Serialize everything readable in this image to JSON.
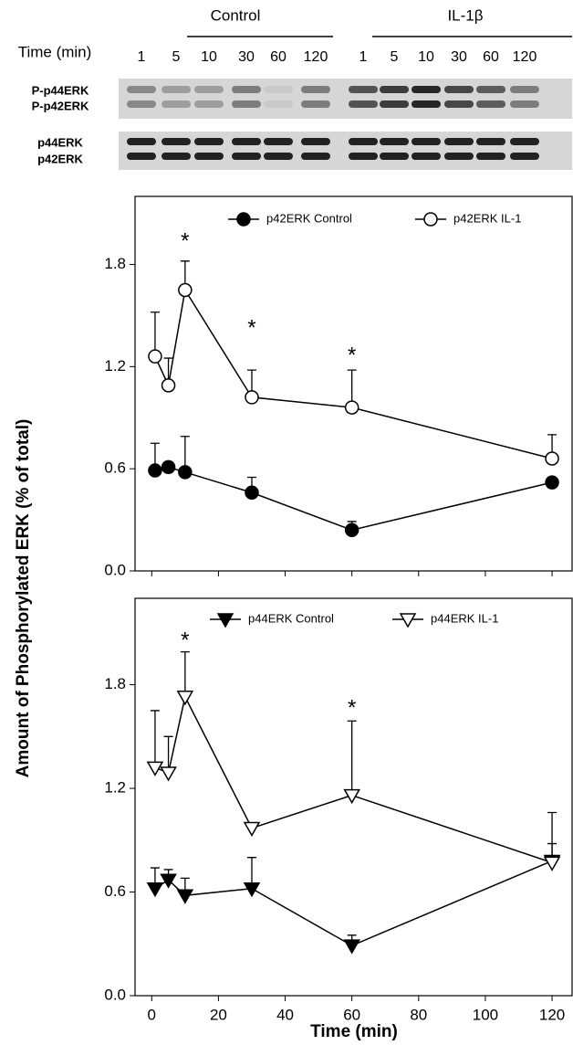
{
  "blot": {
    "groups": [
      "Control",
      "IL-1β"
    ],
    "time_label": "Time (min)",
    "control_lanes": [
      "1",
      "5",
      "10",
      "30",
      "60",
      "120"
    ],
    "il1_lanes": [
      "1",
      "5",
      "10",
      "30",
      "60",
      "120"
    ],
    "phospho_bands": [
      "P-p44ERK",
      "P-p42ERK"
    ],
    "total_bands": [
      "p44ERK",
      "p42ERK"
    ]
  },
  "figure": {
    "ylabel": "Amount of Phosphorylated ERK (% of total)",
    "xlabel": "Time (min)"
  },
  "chart_data": [
    {
      "type": "line",
      "xlim": [
        -5,
        126
      ],
      "ylim": [
        0,
        2.2
      ],
      "xticks": [
        0,
        20,
        40,
        60,
        80,
        100,
        120
      ],
      "xtick_labels": false,
      "yticks": [
        {
          "value": 0,
          "label": "0.0"
        },
        0.6,
        1.2,
        1.8
      ],
      "x": [
        1,
        5,
        10,
        30,
        60,
        120
      ],
      "series": [
        {
          "name": "p42ERK Control",
          "marker": "circle",
          "color": "#000000",
          "values": [
            0.59,
            0.61,
            0.58,
            0.46,
            0.24,
            0.52
          ],
          "errors": [
            0.16,
            0.03,
            0.21,
            0.09,
            0.05,
            0.01
          ]
        },
        {
          "name": "p42ERK IL-1",
          "marker": "circle",
          "color": "#ffffff",
          "values": [
            1.26,
            1.09,
            1.65,
            1.02,
            0.96,
            0.66
          ],
          "errors": [
            0.26,
            0.16,
            0.17,
            0.16,
            0.22,
            0.14
          ]
        }
      ],
      "annotations": [
        {
          "text": "*",
          "x": 10,
          "y": 1.93
        },
        {
          "text": "*",
          "x": 30,
          "y": 1.42
        },
        {
          "text": "*",
          "x": 60,
          "y": 1.26
        }
      ]
    },
    {
      "type": "line",
      "xlim": [
        -5,
        126
      ],
      "ylim": [
        0,
        2.3
      ],
      "xticks": [
        0,
        20,
        40,
        60,
        80,
        100,
        120
      ],
      "xtick_labels": true,
      "yticks": [
        {
          "value": 0,
          "label": "0.0"
        },
        0.6,
        1.2,
        1.8
      ],
      "x": [
        1,
        5,
        10,
        30,
        60,
        120
      ],
      "series": [
        {
          "name": "p44ERK Control",
          "marker": "triangle-down",
          "color": "#000000",
          "values": [
            0.62,
            0.67,
            0.58,
            0.62,
            0.29,
            0.78
          ],
          "errors": [
            0.12,
            0.06,
            0.1,
            0.18,
            0.06,
            0.1
          ]
        },
        {
          "name": "p44ERK IL-1",
          "marker": "triangle-down",
          "color": "#ffffff",
          "values": [
            1.32,
            1.29,
            1.73,
            0.97,
            1.16,
            0.77
          ],
          "errors": [
            0.33,
            0.21,
            0.26,
            0.01,
            0.43,
            0.29
          ]
        }
      ],
      "annotations": [
        {
          "text": "*",
          "x": 10,
          "y": 2.05
        },
        {
          "text": "*",
          "x": 60,
          "y": 1.66
        }
      ]
    }
  ]
}
